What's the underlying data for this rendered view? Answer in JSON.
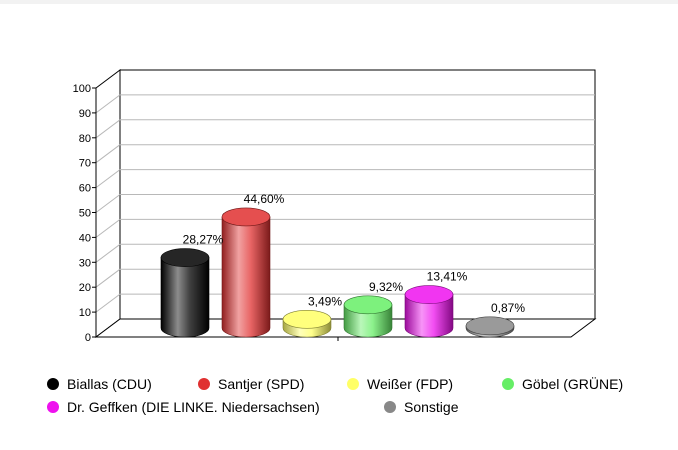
{
  "chart_data": {
    "type": "bar",
    "style": "3d-cylinder",
    "categories": [
      "Biallas (CDU)",
      "Santjer (SPD)",
      "Weißer (FDP)",
      "Göbel (GRÜNE)",
      "Dr. Geffken (DIE LINKE. Niedersachsen)",
      "Sonstige"
    ],
    "values": [
      28.27,
      44.6,
      3.49,
      9.32,
      13.41,
      0.87
    ],
    "value_labels": [
      "28,27%",
      "44,60%",
      "3,49%",
      "9,32%",
      "13,41%",
      "0,87%"
    ],
    "colors": [
      "#000000",
      "#e03030",
      "#ffff66",
      "#66ee66",
      "#ee11ee",
      "#888888"
    ],
    "yticks": [
      "0",
      "10",
      "20",
      "30",
      "40",
      "50",
      "60",
      "70",
      "80",
      "90",
      "100"
    ],
    "ylim": [
      0,
      100
    ],
    "grid": true,
    "legend_position": "bottom"
  }
}
